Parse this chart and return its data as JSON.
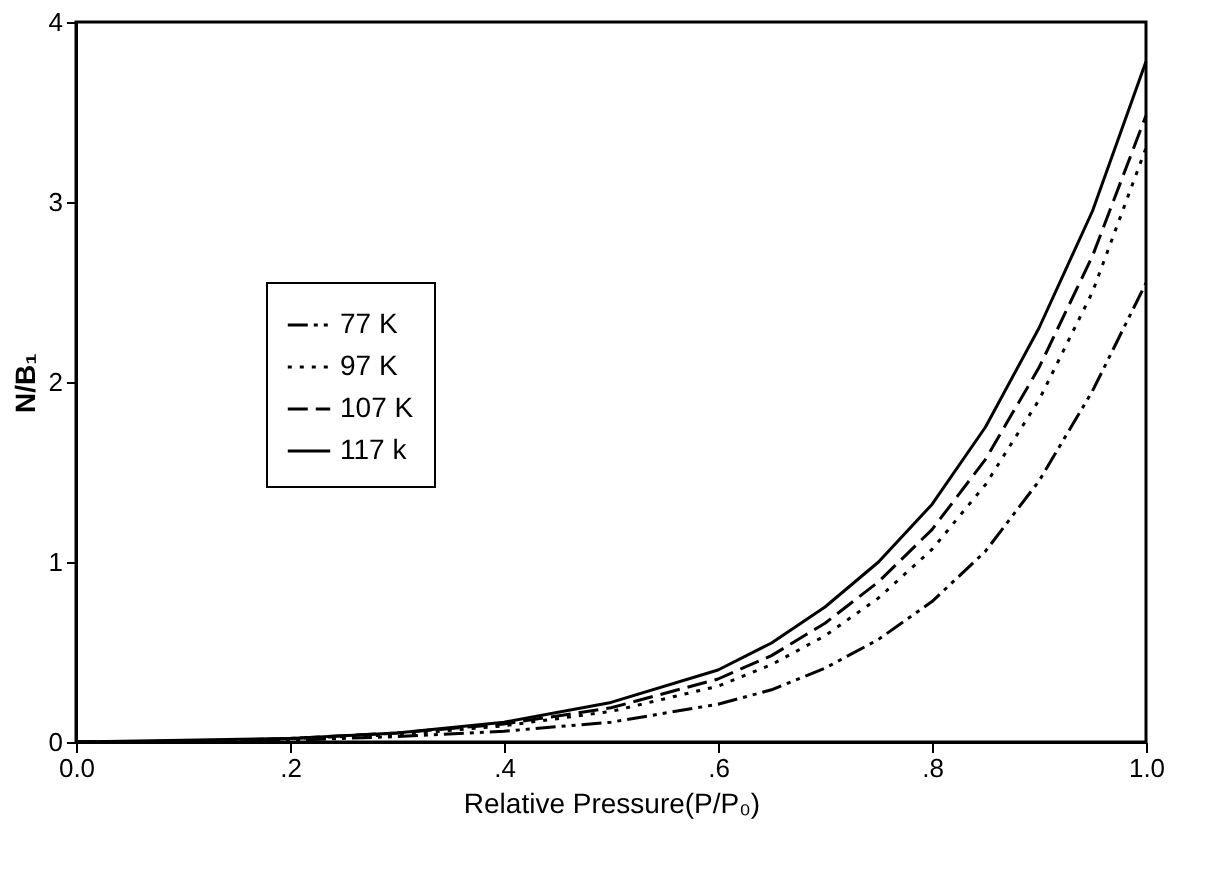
{
  "chart_data": {
    "type": "line",
    "xlabel": "Relative Pressure(P/P₀)",
    "ylabel": "N/B₁",
    "x": [
      0,
      0.1,
      0.2,
      0.3,
      0.4,
      0.5,
      0.6,
      0.65,
      0.7,
      0.75,
      0.8,
      0.85,
      0.9,
      0.95,
      1.0
    ],
    "series": [
      {
        "name": "77 K",
        "color": "#000000",
        "line_style": "dashdot",
        "values": [
          0,
          0,
          0.01,
          0.03,
          0.06,
          0.11,
          0.21,
          0.29,
          0.41,
          0.57,
          0.78,
          1.06,
          1.45,
          1.95,
          2.55
        ]
      },
      {
        "name": "97 K",
        "color": "#000000",
        "line_style": "dotted",
        "values": [
          0,
          0,
          0.02,
          0.04,
          0.09,
          0.17,
          0.31,
          0.43,
          0.59,
          0.8,
          1.07,
          1.43,
          1.9,
          2.5,
          3.3
        ]
      },
      {
        "name": "107 K",
        "color": "#000000",
        "line_style": "dashed",
        "values": [
          0,
          0,
          0.02,
          0.05,
          0.1,
          0.19,
          0.35,
          0.48,
          0.66,
          0.89,
          1.18,
          1.57,
          2.08,
          2.7,
          3.48
        ]
      },
      {
        "name": "117 k",
        "color": "#000000",
        "line_style": "solid",
        "values": [
          0,
          0.01,
          0.02,
          0.05,
          0.11,
          0.22,
          0.4,
          0.55,
          0.75,
          1.0,
          1.32,
          1.75,
          2.3,
          2.95,
          3.78
        ]
      }
    ],
    "xlim": [
      0,
      1
    ],
    "ylim": [
      0,
      4
    ],
    "xticks": [
      {
        "value": 0,
        "label": "0.0"
      },
      {
        "value": 0.2,
        "label": ".2"
      },
      {
        "value": 0.4,
        "label": ".4"
      },
      {
        "value": 0.6,
        "label": ".6"
      },
      {
        "value": 0.8,
        "label": ".8"
      },
      {
        "value": 1,
        "label": "1.0"
      }
    ],
    "yticks": [
      0,
      1,
      2,
      3,
      4
    ],
    "grid": false,
    "legend": "left",
    "marker": "none"
  }
}
